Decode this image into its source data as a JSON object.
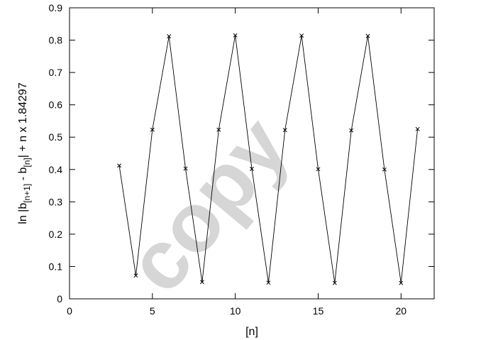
{
  "chart_data": {
    "type": "line",
    "title": "",
    "xlabel": "[n]",
    "ylabel": {
      "part1": "ln |b",
      "sub1": "[n+1]",
      "part2": " - b",
      "sub2": "[n]",
      "part3": "| + n x 1.84297"
    },
    "xlim": [
      0,
      22
    ],
    "ylim": [
      0,
      0.9
    ],
    "xticks": [
      0,
      5,
      10,
      15,
      20
    ],
    "yticks": [
      0,
      0.1,
      0.2,
      0.3,
      0.4,
      0.5,
      0.6,
      0.7,
      0.8,
      0.9
    ],
    "grid": false,
    "marker": "x",
    "series": [
      {
        "x": [
          3,
          4,
          5,
          6,
          7,
          8,
          9,
          10,
          11,
          12,
          13,
          14,
          15,
          16,
          17,
          18,
          19,
          20,
          21
        ],
        "y": [
          0.412,
          0.072,
          0.523,
          0.812,
          0.403,
          0.052,
          0.523,
          0.815,
          0.402,
          0.05,
          0.522,
          0.814,
          0.401,
          0.049,
          0.521,
          0.813,
          0.4,
          0.049,
          0.525
        ]
      }
    ]
  },
  "watermark": "copy"
}
